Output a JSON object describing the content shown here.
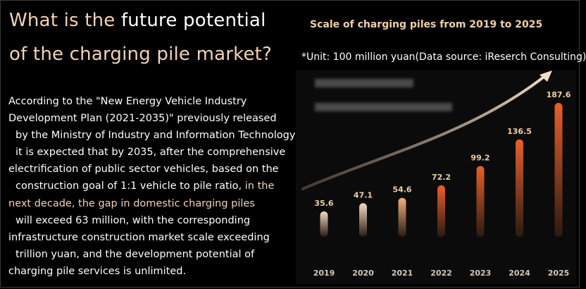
{
  "heading": {
    "line1_white_a": "What is the ",
    "line1_tan": "future potential",
    "line2": "of the charging pile market?"
  },
  "body": {
    "l1": "According to the \"New Energy Vehicle Industry",
    "l2": "Development Plan (2021-2035)\" previously released",
    "l3": "by the Ministry of Industry and Information Technology,",
    "l4": "it is expected that by 2035, after the comprehensive",
    "l5": "electrification of public sector vehicles, based on the",
    "l6a": "construction goal of 1:1 vehicle to pile ratio,",
    "l6b": " in the",
    "l7": "next decade, the gap in domestic charging piles",
    "l8": "will exceed 63 million, with the corresponding",
    "l9": "infrastructure construction market scale exceeding",
    "l10": "trillion yuan, and the development potential of",
    "l11": "charging pile services is unlimited."
  },
  "chart_data": {
    "type": "bar",
    "title": "Scale of charging piles from 2019 to 2025",
    "unit_note": "*Unit: 100 million yuan(Data source: iReserch Consulting)",
    "categories": [
      "2019",
      "2020",
      "2021",
      "2022",
      "2023",
      "2024",
      "2025"
    ],
    "values": [
      35.6,
      47.1,
      54.6,
      72.2,
      99.2,
      136.5,
      187.6
    ],
    "ylim": [
      0,
      187.6
    ],
    "grid": false,
    "legend": "none",
    "colors": {
      "bar_light": "#f3dcc4",
      "bar_mid": "#ee8a4f",
      "bar_dark": "#e8602a",
      "label": "#f0cfa6",
      "tick": "#d9c7b4"
    }
  }
}
